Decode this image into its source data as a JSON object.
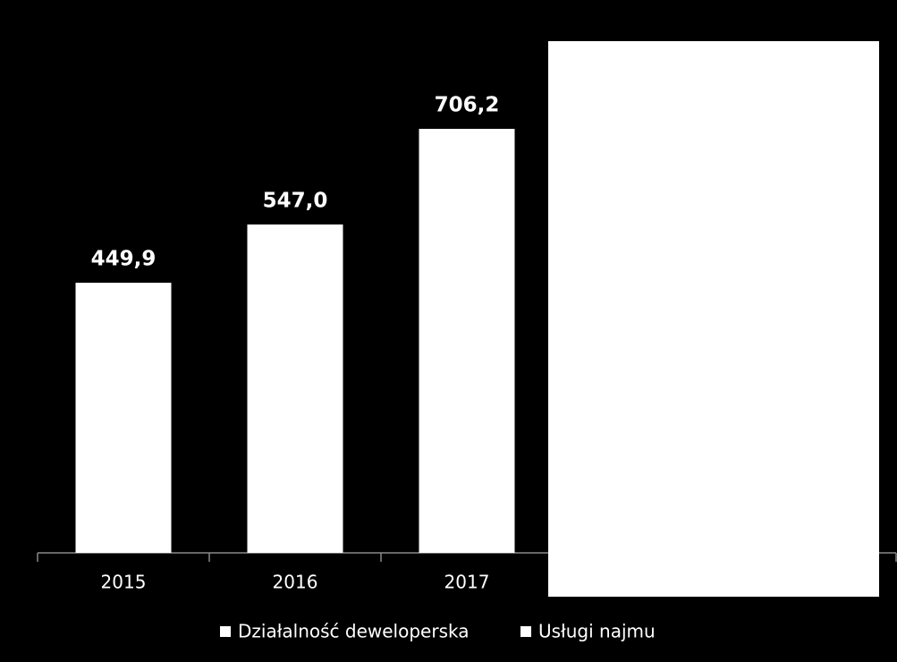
{
  "chart_data": {
    "type": "bar",
    "categories": [
      "2015",
      "2016",
      "2017",
      null,
      null
    ],
    "series": [
      {
        "name": "Działalność deweloperska",
        "color": "#ffffff",
        "values": [
          449.9,
          547.0,
          706.2,
          null,
          null
        ],
        "value_labels": [
          "449,9",
          "547,0",
          "706,2",
          null,
          null
        ]
      },
      {
        "name": "Usługi najmu",
        "color": "#ffffff",
        "values": [
          null,
          null,
          null,
          null,
          null
        ]
      }
    ],
    "ylim": [
      0,
      900
    ]
  }
}
